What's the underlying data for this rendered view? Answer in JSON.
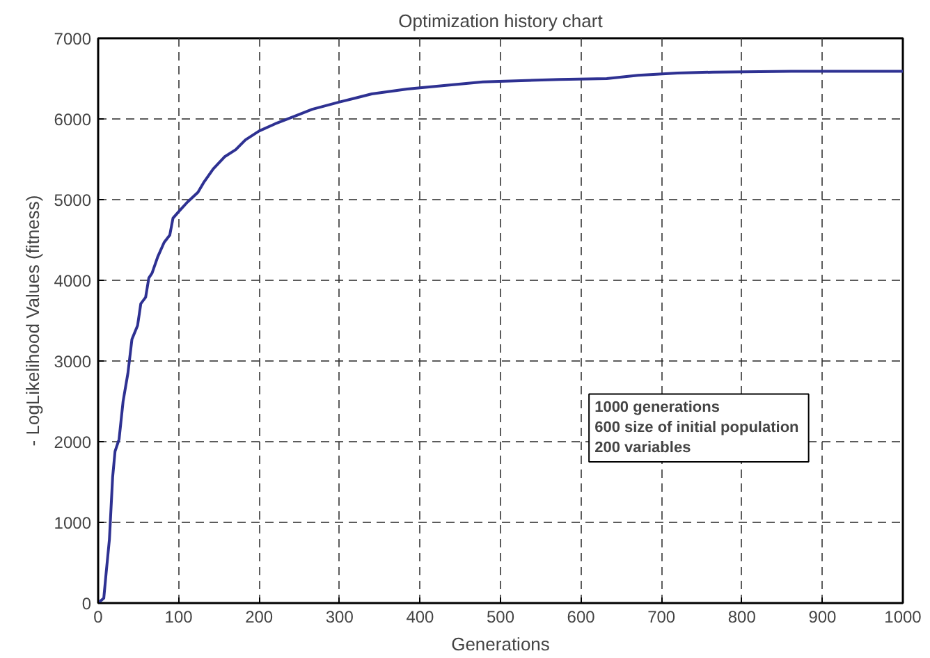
{
  "chart_data": {
    "type": "line",
    "title": "Optimization history chart",
    "xlabel": "Generations",
    "ylabel": "- LogLikelihood Values (fitness)",
    "x": [
      0,
      7,
      10,
      14,
      18,
      21,
      26,
      31,
      37,
      42,
      49,
      53,
      59,
      63,
      67,
      74,
      82,
      89,
      93,
      100,
      111,
      124,
      131,
      143,
      157,
      171,
      183,
      200,
      220,
      243,
      266,
      300,
      340,
      384,
      478,
      573,
      632,
      671,
      720,
      764,
      861,
      1000
    ],
    "series": [
      {
        "color": "#2e3192",
        "values": [
          0,
          60,
          380,
          790,
          1560,
          1880,
          2030,
          2500,
          2850,
          3270,
          3440,
          3710,
          3790,
          4030,
          4090,
          4290,
          4470,
          4560,
          4770,
          4850,
          4970,
          5090,
          5210,
          5380,
          5530,
          5620,
          5740,
          5850,
          5940,
          6030,
          6120,
          6210,
          6310,
          6370,
          6460,
          6490,
          6500,
          6540,
          6570,
          6580,
          6590,
          6590
        ]
      }
    ],
    "xlim": [
      0,
      1000
    ],
    "ylim": [
      0,
      7000
    ],
    "xticks": [
      0,
      100,
      200,
      300,
      400,
      500,
      600,
      700,
      800,
      900,
      1000
    ],
    "yticks": [
      0,
      1000,
      2000,
      3000,
      4000,
      5000,
      6000,
      7000
    ],
    "grid": true,
    "line_style": "solid",
    "annotations": [
      "1000 generations\n 600 size of initial population\n 200 variables"
    ]
  }
}
